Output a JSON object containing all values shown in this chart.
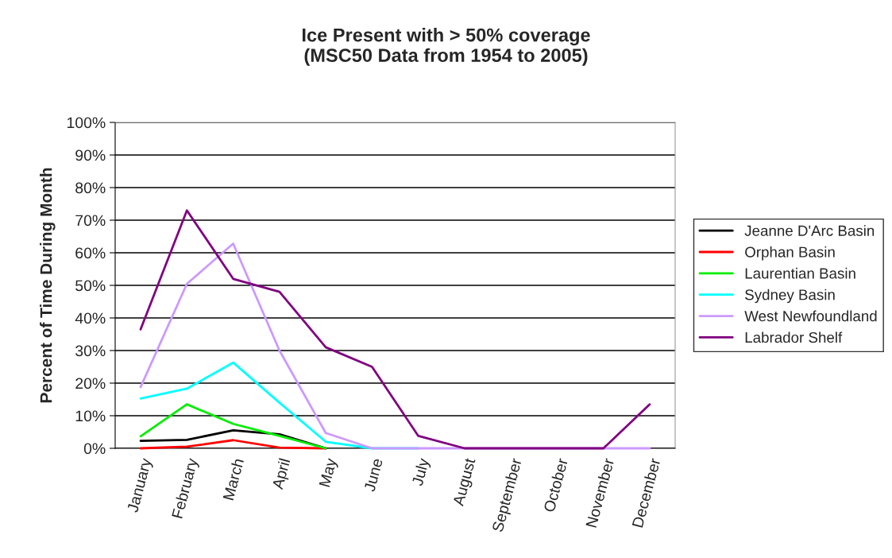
{
  "chart_data": {
    "type": "line",
    "title": "Ice Present with > 50% coverage\n(MSC50 Data from 1954 to 2005)",
    "ylabel": "Percent of Time During Month",
    "categories": [
      "January",
      "February",
      "March",
      "April",
      "May",
      "June",
      "July",
      "August",
      "September",
      "October",
      "November",
      "December"
    ],
    "series": [
      {
        "name": "Jeanne D'Arc Basin",
        "color": "#000000",
        "values": [
          2.3,
          2.6,
          5.5,
          4.3,
          0,
          null,
          null,
          null,
          null,
          null,
          null,
          null
        ]
      },
      {
        "name": "Orphan Basin",
        "color": "#ff0000",
        "values": [
          0,
          0.5,
          2.5,
          0.2,
          0,
          null,
          null,
          null,
          null,
          null,
          null,
          null
        ]
      },
      {
        "name": "Laurentian Basin",
        "color": "#00ee00",
        "values": [
          3.7,
          13.5,
          7.5,
          3.8,
          0,
          null,
          null,
          null,
          null,
          null,
          null,
          null
        ]
      },
      {
        "name": "Sydney Basin",
        "color": "#00ffff",
        "values": [
          15.3,
          18.3,
          26.3,
          14,
          2,
          0,
          0,
          null,
          null,
          null,
          null,
          null
        ]
      },
      {
        "name": "West Newfoundland",
        "color": "#cc99ff",
        "values": [
          18.8,
          50.5,
          62.8,
          30,
          4.7,
          0,
          0,
          0,
          0,
          0,
          0,
          0
        ]
      },
      {
        "name": "Labrador Shelf",
        "color": "#800080",
        "values": [
          36.5,
          73,
          52,
          48,
          31,
          25,
          3.8,
          0,
          0,
          0,
          0,
          13.5
        ]
      }
    ],
    "ylim": [
      0,
      100
    ],
    "yticks": [
      {
        "value": 0,
        "label": "0%"
      },
      {
        "value": 10,
        "label": "10%"
      },
      {
        "value": 20,
        "label": "20%"
      },
      {
        "value": 30,
        "label": "30%"
      },
      {
        "value": 40,
        "label": "40%"
      },
      {
        "value": 50,
        "label": "50%"
      },
      {
        "value": 60,
        "label": "60%"
      },
      {
        "value": 70,
        "label": "70%"
      },
      {
        "value": 80,
        "label": "80%"
      },
      {
        "value": 90,
        "label": "90%"
      },
      {
        "value": 100,
        "label": "100%"
      }
    ],
    "grid": "y",
    "legend": "right",
    "marker": "none",
    "line_style": "solid"
  }
}
